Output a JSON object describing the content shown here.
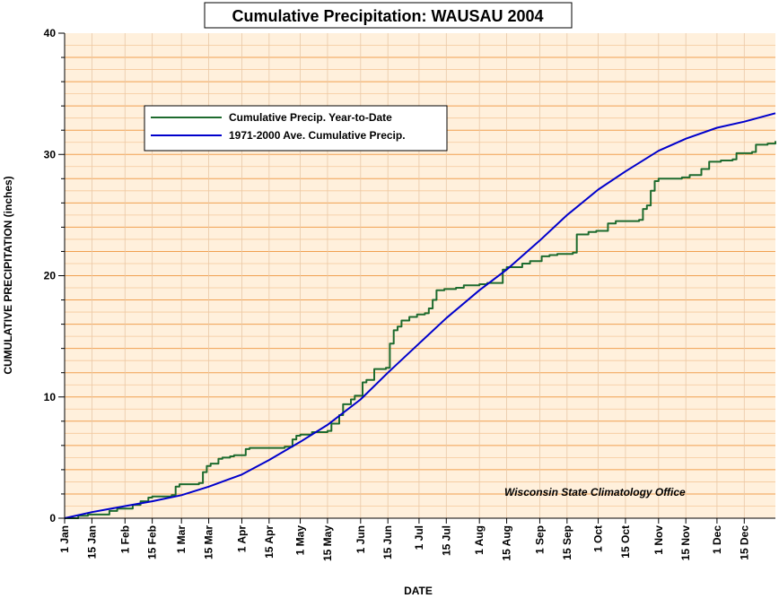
{
  "chart_data": {
    "type": "line",
    "title": "Cumulative Precipitation: WAUSAU 2004",
    "xlabel": "DATE",
    "ylabel": "CUMULATIVE PRECIPITATION (inches)",
    "ylim": [
      0,
      40
    ],
    "xlim": [
      1,
      366
    ],
    "y_ticks": [
      0,
      10,
      20,
      30,
      40
    ],
    "x_tick_labels": [
      {
        "day": 1,
        "label": "1 Jan"
      },
      {
        "day": 15,
        "label": "15 Jan"
      },
      {
        "day": 32,
        "label": "1 Feb"
      },
      {
        "day": 46,
        "label": "15 Feb"
      },
      {
        "day": 61,
        "label": "1 Mar"
      },
      {
        "day": 75,
        "label": "15 Mar"
      },
      {
        "day": 92,
        "label": "1 Apr"
      },
      {
        "day": 106,
        "label": "15 Apr"
      },
      {
        "day": 122,
        "label": "1 May"
      },
      {
        "day": 136,
        "label": "15 May"
      },
      {
        "day": 153,
        "label": "1 Jun"
      },
      {
        "day": 167,
        "label": "15 Jun"
      },
      {
        "day": 183,
        "label": "1 Jul"
      },
      {
        "day": 197,
        "label": "15 Jul"
      },
      {
        "day": 214,
        "label": "1 Aug"
      },
      {
        "day": 228,
        "label": "15 Aug"
      },
      {
        "day": 245,
        "label": "1 Sep"
      },
      {
        "day": 259,
        "label": "15 Sep"
      },
      {
        "day": 275,
        "label": "1 Oct"
      },
      {
        "day": 289,
        "label": "15 Oct"
      },
      {
        "day": 306,
        "label": "1 Nov"
      },
      {
        "day": 320,
        "label": "15 Nov"
      },
      {
        "day": 336,
        "label": "1 Dec"
      },
      {
        "day": 350,
        "label": "15 Dec"
      }
    ],
    "grid": true,
    "legend_position": "top-left",
    "annotation": "Wisconsin State Climatology Office",
    "series": [
      {
        "name": "Cumulative Precip. Year-to-Date",
        "color": "#1e6b2e",
        "step": true,
        "points": [
          [
            1,
            0.0
          ],
          [
            8,
            0.2
          ],
          [
            13,
            0.3
          ],
          [
            24,
            0.6
          ],
          [
            28,
            0.8
          ],
          [
            36,
            1.1
          ],
          [
            40,
            1.4
          ],
          [
            44,
            1.7
          ],
          [
            46,
            1.8
          ],
          [
            56,
            1.9
          ],
          [
            58,
            2.6
          ],
          [
            60,
            2.8
          ],
          [
            70,
            2.9
          ],
          [
            72,
            3.8
          ],
          [
            74,
            4.3
          ],
          [
            76,
            4.5
          ],
          [
            80,
            4.9
          ],
          [
            82,
            5.0
          ],
          [
            86,
            5.1
          ],
          [
            88,
            5.2
          ],
          [
            94,
            5.7
          ],
          [
            96,
            5.8
          ],
          [
            114,
            5.9
          ],
          [
            118,
            6.5
          ],
          [
            120,
            6.8
          ],
          [
            122,
            6.9
          ],
          [
            128,
            7.1
          ],
          [
            136,
            7.2
          ],
          [
            138,
            7.8
          ],
          [
            142,
            8.5
          ],
          [
            144,
            9.4
          ],
          [
            148,
            9.8
          ],
          [
            150,
            10.1
          ],
          [
            154,
            11.2
          ],
          [
            156,
            11.4
          ],
          [
            160,
            12.3
          ],
          [
            166,
            12.4
          ],
          [
            168,
            14.4
          ],
          [
            170,
            15.5
          ],
          [
            172,
            15.8
          ],
          [
            174,
            16.3
          ],
          [
            178,
            16.6
          ],
          [
            182,
            16.8
          ],
          [
            186,
            16.9
          ],
          [
            188,
            17.3
          ],
          [
            190,
            18.0
          ],
          [
            192,
            18.8
          ],
          [
            196,
            18.9
          ],
          [
            202,
            19.0
          ],
          [
            206,
            19.2
          ],
          [
            214,
            19.3
          ],
          [
            218,
            19.4
          ],
          [
            226,
            20.5
          ],
          [
            228,
            20.7
          ],
          [
            236,
            21.0
          ],
          [
            240,
            21.2
          ],
          [
            246,
            21.6
          ],
          [
            250,
            21.7
          ],
          [
            254,
            21.8
          ],
          [
            262,
            21.9
          ],
          [
            264,
            23.4
          ],
          [
            270,
            23.6
          ],
          [
            274,
            23.7
          ],
          [
            280,
            24.3
          ],
          [
            284,
            24.5
          ],
          [
            296,
            24.6
          ],
          [
            298,
            25.5
          ],
          [
            300,
            25.8
          ],
          [
            302,
            27.0
          ],
          [
            304,
            27.8
          ],
          [
            306,
            28.0
          ],
          [
            318,
            28.1
          ],
          [
            322,
            28.3
          ],
          [
            328,
            28.8
          ],
          [
            332,
            29.4
          ],
          [
            338,
            29.5
          ],
          [
            344,
            29.6
          ],
          [
            346,
            30.1
          ],
          [
            354,
            30.2
          ],
          [
            356,
            30.8
          ],
          [
            362,
            30.9
          ],
          [
            366,
            31.1
          ]
        ]
      },
      {
        "name": "1971-2000 Ave. Cumulative Precip.",
        "color": "#0000cc",
        "step": false,
        "points": [
          [
            1,
            0.0
          ],
          [
            15,
            0.5
          ],
          [
            32,
            1.0
          ],
          [
            46,
            1.4
          ],
          [
            61,
            1.9
          ],
          [
            75,
            2.6
          ],
          [
            92,
            3.6
          ],
          [
            106,
            4.8
          ],
          [
            122,
            6.3
          ],
          [
            136,
            7.7
          ],
          [
            153,
            9.8
          ],
          [
            167,
            12.0
          ],
          [
            183,
            14.4
          ],
          [
            197,
            16.5
          ],
          [
            214,
            18.8
          ],
          [
            228,
            20.5
          ],
          [
            245,
            22.9
          ],
          [
            259,
            25.0
          ],
          [
            275,
            27.1
          ],
          [
            289,
            28.6
          ],
          [
            306,
            30.3
          ],
          [
            320,
            31.3
          ],
          [
            336,
            32.2
          ],
          [
            350,
            32.7
          ],
          [
            366,
            33.4
          ]
        ]
      }
    ]
  }
}
